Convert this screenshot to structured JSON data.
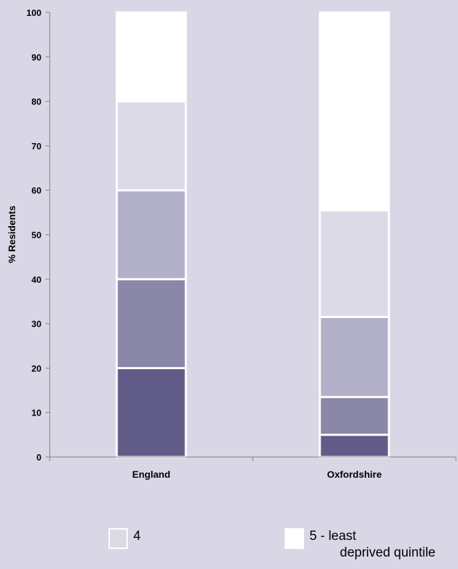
{
  "chart_data": {
    "type": "bar",
    "stacked": true,
    "categories": [
      "England",
      "Oxfordshire"
    ],
    "ylabel": "% Residents",
    "ylim": [
      0,
      100
    ],
    "yticks": [
      0,
      10,
      20,
      30,
      40,
      50,
      60,
      70,
      80,
      90,
      100
    ],
    "grid": false,
    "series": [
      {
        "color": "#615c87",
        "values": [
          20,
          5
        ]
      },
      {
        "color": "#8a87a9",
        "values": [
          20,
          8.5
        ]
      },
      {
        "color": "#b2b0c9",
        "values": [
          20,
          18
        ]
      },
      {
        "name": "4",
        "color": "#dbdae6",
        "values": [
          20,
          24
        ]
      },
      {
        "name": "5 - least deprived quintile",
        "color": "#ffffff",
        "values": [
          20,
          44.5
        ]
      }
    ],
    "legend": {
      "placement": "bottom",
      "items": [
        {
          "label_line1": "4",
          "label_line2": "",
          "color": "#dbdae6"
        },
        {
          "label_line1": "5 - least",
          "label_line2": "deprived quintile",
          "color": "#ffffff"
        }
      ]
    }
  }
}
